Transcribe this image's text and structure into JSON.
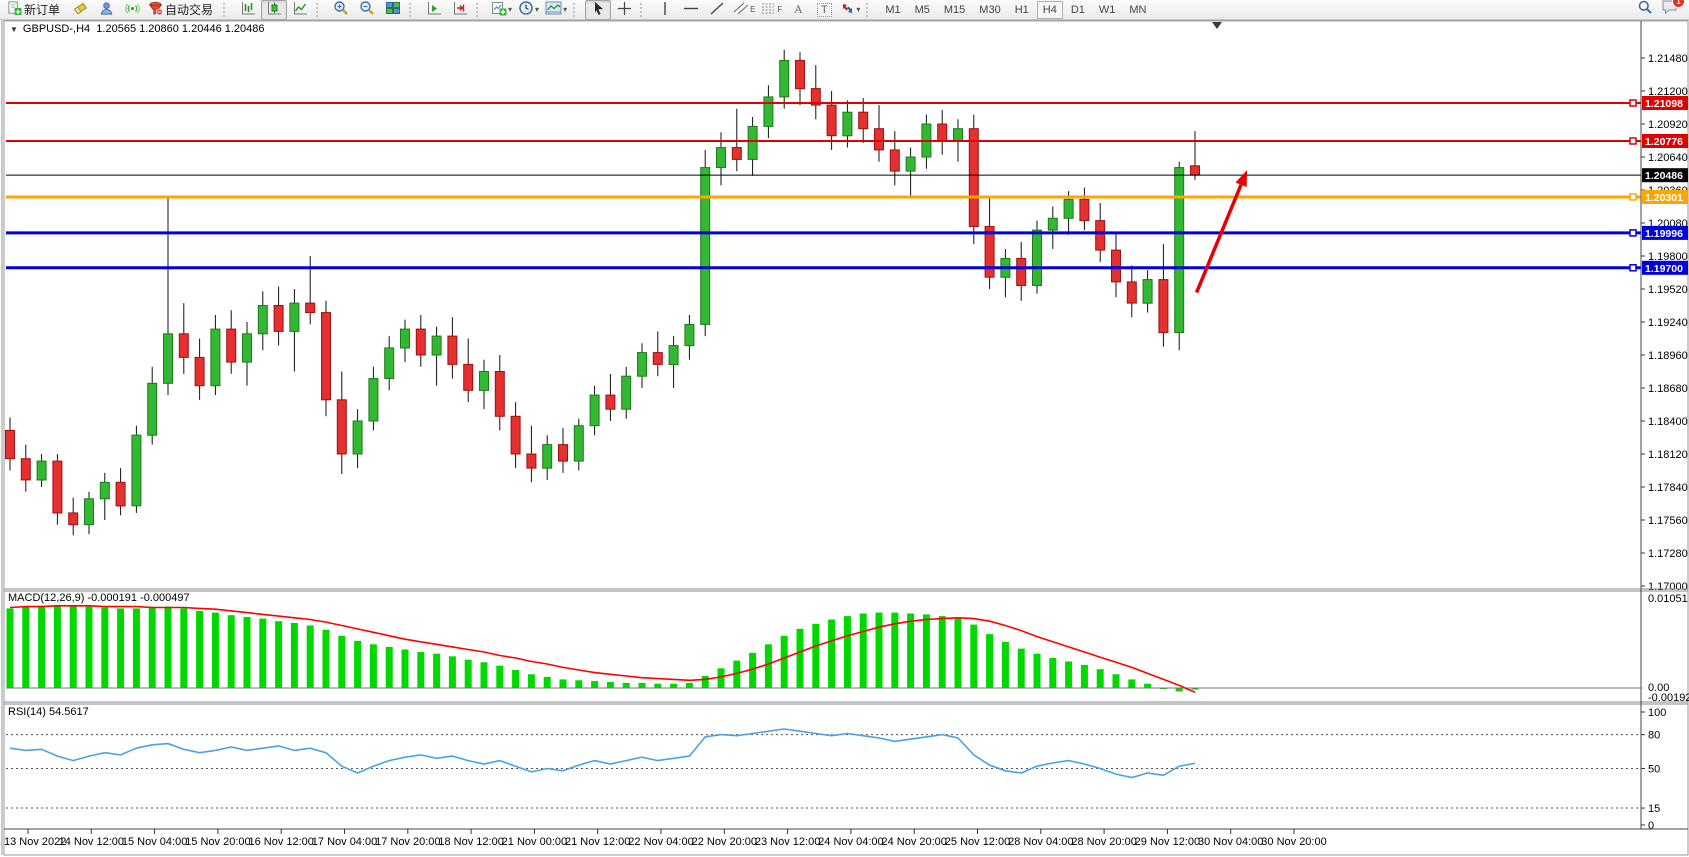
{
  "toolbar": {
    "new_order_label": "新订单",
    "autotrading_label": "自动交易",
    "channel_letter": "E",
    "fibo_letter": "F",
    "text_letter": "A",
    "label_letter": "T",
    "timeframes": [
      "M1",
      "M5",
      "M15",
      "M30",
      "H1",
      "H4",
      "D1",
      "W1",
      "MN"
    ],
    "active_timeframe": "H4",
    "notification_badge": "1"
  },
  "chart": {
    "title": "GBPUSD-,H4",
    "ohlc_text": "1.20565 1.20860 1.20446 1.20486",
    "macd_text": "MACD(12,26,9) -0.000191 -0.000497",
    "rsi_text": "RSI(14) 54.5617"
  },
  "chart_data": {
    "type": "candlestick",
    "symbol": "GBPUSD-",
    "timeframe": "H4",
    "ohlc_current": {
      "open": 1.20565,
      "high": 1.2086,
      "low": 1.20446,
      "close": 1.20486
    },
    "price_axis": {
      "max": 1.2148,
      "min": 1.17,
      "step": 0.0028,
      "ticks": [
        "1.21480",
        "1.21200",
        "1.20920",
        "1.20640",
        "1.20360",
        "1.20080",
        "1.19800",
        "1.19520",
        "1.19240",
        "1.18960",
        "1.18680",
        "1.18400",
        "1.18120",
        "1.17840",
        "1.17560",
        "1.17280",
        "1.17000"
      ]
    },
    "colors": {
      "up": "#33b833",
      "up_border": "#1d7a1d",
      "down": "#e33030",
      "down_border": "#a01010",
      "wick": "#111111",
      "macd_hist": "#00d800",
      "macd_signal": "#ff0000",
      "rsi_line": "#4aa3e0",
      "resistance": "#e00000",
      "pivot": "#ffa500",
      "support": "#0000dd",
      "current": "#000000",
      "arrow": "#e80000"
    },
    "candles": [
      [
        1.1832,
        1.1843,
        1.1798,
        1.1808
      ],
      [
        1.1808,
        1.182,
        1.178,
        1.179
      ],
      [
        1.179,
        1.1812,
        1.1784,
        1.1806
      ],
      [
        1.1806,
        1.1812,
        1.1752,
        1.1762
      ],
      [
        1.1762,
        1.1775,
        1.1743,
        1.1752
      ],
      [
        1.1752,
        1.178,
        1.1744,
        1.1774
      ],
      [
        1.1774,
        1.1796,
        1.1756,
        1.1788
      ],
      [
        1.1788,
        1.18,
        1.176,
        1.1768
      ],
      [
        1.1768,
        1.1836,
        1.1762,
        1.1828
      ],
      [
        1.1828,
        1.1886,
        1.182,
        1.1872
      ],
      [
        1.1872,
        1.2029,
        1.1862,
        1.1914
      ],
      [
        1.1914,
        1.194,
        1.188,
        1.1894
      ],
      [
        1.1894,
        1.191,
        1.1858,
        1.187
      ],
      [
        1.187,
        1.193,
        1.1862,
        1.1918
      ],
      [
        1.1918,
        1.1934,
        1.188,
        1.189
      ],
      [
        1.189,
        1.1924,
        1.187,
        1.1914
      ],
      [
        1.1914,
        1.195,
        1.19,
        1.1938
      ],
      [
        1.1938,
        1.1954,
        1.1904,
        1.1916
      ],
      [
        1.1916,
        1.1952,
        1.1882,
        1.194
      ],
      [
        1.194,
        1.198,
        1.1922,
        1.1932
      ],
      [
        1.1932,
        1.1942,
        1.1844,
        1.1858
      ],
      [
        1.1858,
        1.1882,
        1.1795,
        1.1812
      ],
      [
        1.1812,
        1.185,
        1.18,
        1.184
      ],
      [
        1.184,
        1.1886,
        1.1832,
        1.1876
      ],
      [
        1.1876,
        1.1912,
        1.1866,
        1.1902
      ],
      [
        1.1902,
        1.1926,
        1.189,
        1.1918
      ],
      [
        1.1918,
        1.193,
        1.1886,
        1.1896
      ],
      [
        1.1896,
        1.192,
        1.187,
        1.1912
      ],
      [
        1.1912,
        1.1928,
        1.1876,
        1.1888
      ],
      [
        1.1888,
        1.191,
        1.1856,
        1.1866
      ],
      [
        1.1866,
        1.1892,
        1.185,
        1.1882
      ],
      [
        1.1882,
        1.1896,
        1.1832,
        1.1844
      ],
      [
        1.1844,
        1.1856,
        1.18,
        1.1812
      ],
      [
        1.1812,
        1.1836,
        1.1788,
        1.18
      ],
      [
        1.18,
        1.1828,
        1.179,
        1.182
      ],
      [
        1.182,
        1.1834,
        1.1796,
        1.1806
      ],
      [
        1.1806,
        1.1842,
        1.1798,
        1.1836
      ],
      [
        1.1836,
        1.187,
        1.1828,
        1.1862
      ],
      [
        1.1862,
        1.188,
        1.184,
        1.185
      ],
      [
        1.185,
        1.1886,
        1.1842,
        1.1878
      ],
      [
        1.1878,
        1.1906,
        1.1868,
        1.1898
      ],
      [
        1.1898,
        1.1916,
        1.1878,
        1.1888
      ],
      [
        1.1888,
        1.1912,
        1.1868,
        1.1904
      ],
      [
        1.1904,
        1.193,
        1.1892,
        1.1922
      ],
      [
        1.1922,
        1.207,
        1.1912,
        1.2055
      ],
      [
        1.2055,
        1.2085,
        1.204,
        1.2072
      ],
      [
        1.2072,
        1.2105,
        1.2052,
        1.2062
      ],
      [
        1.2062,
        1.2098,
        1.2048,
        1.209
      ],
      [
        1.209,
        1.2125,
        1.208,
        1.2115
      ],
      [
        1.2115,
        1.2155,
        1.2105,
        1.2146
      ],
      [
        1.2146,
        1.2153,
        1.2108,
        1.2122
      ],
      [
        1.2122,
        1.2142,
        1.2096,
        1.2108
      ],
      [
        1.2108,
        1.212,
        1.207,
        1.2082
      ],
      [
        1.2082,
        1.2112,
        1.2072,
        1.2102
      ],
      [
        1.2102,
        1.2114,
        1.2076,
        1.2088
      ],
      [
        1.2088,
        1.2108,
        1.206,
        1.207
      ],
      [
        1.207,
        1.2086,
        1.204,
        1.2052
      ],
      [
        1.2052,
        1.2072,
        1.203,
        1.2064
      ],
      [
        1.2064,
        1.21,
        1.2054,
        1.2092
      ],
      [
        1.2092,
        1.2104,
        1.2066,
        1.2078
      ],
      [
        1.2078,
        1.2096,
        1.206,
        1.2088
      ],
      [
        1.2088,
        1.21,
        1.199,
        1.2005
      ],
      [
        1.2005,
        1.203,
        1.1952,
        1.1962
      ],
      [
        1.1962,
        1.1986,
        1.1945,
        1.1978
      ],
      [
        1.1978,
        1.1992,
        1.1942,
        1.1955
      ],
      [
        1.1955,
        1.201,
        1.1948,
        1.2002
      ],
      [
        1.2002,
        1.2022,
        1.1986,
        1.2012
      ],
      [
        1.2012,
        1.2035,
        1.1998,
        1.2028
      ],
      [
        1.2028,
        1.2038,
        1.2002,
        1.201
      ],
      [
        1.201,
        1.2025,
        1.1975,
        1.1985
      ],
      [
        1.1985,
        1.2,
        1.1945,
        1.1958
      ],
      [
        1.1958,
        1.1972,
        1.1928,
        1.194
      ],
      [
        1.194,
        1.1968,
        1.1932,
        1.196
      ],
      [
        1.196,
        1.199,
        1.1903,
        1.1915
      ],
      [
        1.1915,
        1.206,
        1.19,
        1.2055
      ],
      [
        1.20565,
        1.2086,
        1.20446,
        1.20486
      ]
    ],
    "hlines": [
      {
        "price": 1.21098,
        "label": "1.21098",
        "color": "#e00000",
        "width": 2
      },
      {
        "price": 1.20776,
        "label": "1.20776",
        "color": "#e00000",
        "width": 2
      },
      {
        "price": 1.20301,
        "label": "1.20301",
        "color": "#ffa500",
        "width": 3
      },
      {
        "price": 1.19996,
        "label": "1.19996",
        "color": "#0000dd",
        "width": 3
      },
      {
        "price": 1.197,
        "label": "1.19700",
        "color": "#0000dd",
        "width": 3
      }
    ],
    "current_price": {
      "price": 1.20486,
      "label": "1.20486",
      "color": "#000000"
    },
    "trend_arrow": {
      "color": "#e80000",
      "from": {
        "bar": 75.1,
        "price": 1.1949
      },
      "to": {
        "bar": 78.3,
        "price": 1.2053
      }
    },
    "time_labels": [
      "13 Nov 2022",
      "14 Nov 12:00",
      "15 Nov 04:00",
      "15 Nov 20:00",
      "16 Nov 12:00",
      "17 Nov 04:00",
      "17 Nov 20:00",
      "18 Nov 12:00",
      "21 Nov 00:00",
      "21 Nov 12:00",
      "22 Nov 04:00",
      "22 Nov 20:00",
      "23 Nov 12:00",
      "24 Nov 04:00",
      "24 Nov 20:00",
      "25 Nov 12:00",
      "28 Nov 04:00",
      "28 Nov 20:00",
      "29 Nov 12:00",
      "30 Nov 04:00",
      "30 Nov 20:00"
    ],
    "macd": {
      "name": "MACD(12,26,9)",
      "value_main": "-0.000191",
      "value_signal": "-0.000497",
      "axis_labels": [
        "0.01051",
        "0.00",
        "-0.001924"
      ],
      "scale_max": 0.01051,
      "scale_min": -0.001924,
      "histogram": [
        0.0093,
        0.0095,
        0.0096,
        0.0097,
        0.0096,
        0.0095,
        0.0094,
        0.0093,
        0.0093,
        0.0094,
        0.0095,
        0.0093,
        0.009,
        0.0088,
        0.0085,
        0.0083,
        0.0081,
        0.0078,
        0.0076,
        0.0073,
        0.0068,
        0.0061,
        0.0055,
        0.0051,
        0.0048,
        0.0045,
        0.0042,
        0.004,
        0.0037,
        0.0033,
        0.003,
        0.0026,
        0.0021,
        0.0016,
        0.0013,
        0.001,
        0.0009,
        0.0008,
        0.0007,
        0.0006,
        0.0006,
        0.0005,
        0.0005,
        0.0006,
        0.0014,
        0.0023,
        0.0032,
        0.0041,
        0.0051,
        0.0061,
        0.0069,
        0.0075,
        0.008,
        0.0084,
        0.0087,
        0.0088,
        0.0088,
        0.0087,
        0.0086,
        0.0084,
        0.0082,
        0.0074,
        0.0063,
        0.0054,
        0.0046,
        0.004,
        0.0035,
        0.0031,
        0.0027,
        0.0022,
        0.0016,
        0.001,
        0.0005,
        0.0,
        -0.0004,
        -0.000191
      ],
      "signal": [
        0.0094,
        0.0095,
        0.0095,
        0.0096,
        0.0096,
        0.0096,
        0.0095,
        0.0095,
        0.0095,
        0.0094,
        0.0094,
        0.0094,
        0.0093,
        0.0092,
        0.009,
        0.0088,
        0.0086,
        0.0084,
        0.0082,
        0.008,
        0.0077,
        0.0073,
        0.0069,
        0.0065,
        0.0061,
        0.0057,
        0.0054,
        0.0051,
        0.0048,
        0.0045,
        0.0042,
        0.0038,
        0.0035,
        0.0031,
        0.0028,
        0.0024,
        0.0021,
        0.0018,
        0.0016,
        0.0014,
        0.0012,
        0.0011,
        0.001,
        0.0009,
        0.001,
        0.0013,
        0.0017,
        0.0022,
        0.0028,
        0.0035,
        0.0042,
        0.0049,
        0.0055,
        0.0061,
        0.0066,
        0.0071,
        0.0075,
        0.0078,
        0.008,
        0.0081,
        0.0082,
        0.0081,
        0.0078,
        0.0073,
        0.0067,
        0.006,
        0.0054,
        0.0048,
        0.0042,
        0.0036,
        0.003,
        0.0024,
        0.0017,
        0.001,
        0.0003,
        -0.000497
      ]
    },
    "rsi": {
      "name": "RSI(14)",
      "value": "54.5617",
      "levels": [
        80,
        50,
        15
      ],
      "axis_labels": [
        "100",
        "80",
        "50",
        "15",
        "0"
      ],
      "series": [
        68,
        66,
        67,
        61,
        57,
        61,
        64,
        62,
        68,
        71,
        72,
        67,
        64,
        66,
        69,
        66,
        68,
        70,
        66,
        68,
        64,
        52,
        46,
        52,
        57,
        60,
        62,
        59,
        61,
        57,
        54,
        57,
        52,
        47,
        50,
        48,
        53,
        57,
        54,
        57,
        60,
        57,
        59,
        61,
        78,
        80,
        79,
        81,
        83,
        85,
        83,
        81,
        79,
        81,
        79,
        77,
        74,
        76,
        78,
        80,
        77,
        62,
        53,
        48,
        46,
        52,
        55,
        57,
        54,
        50,
        45,
        42,
        46,
        44,
        52,
        54.56
      ]
    }
  }
}
